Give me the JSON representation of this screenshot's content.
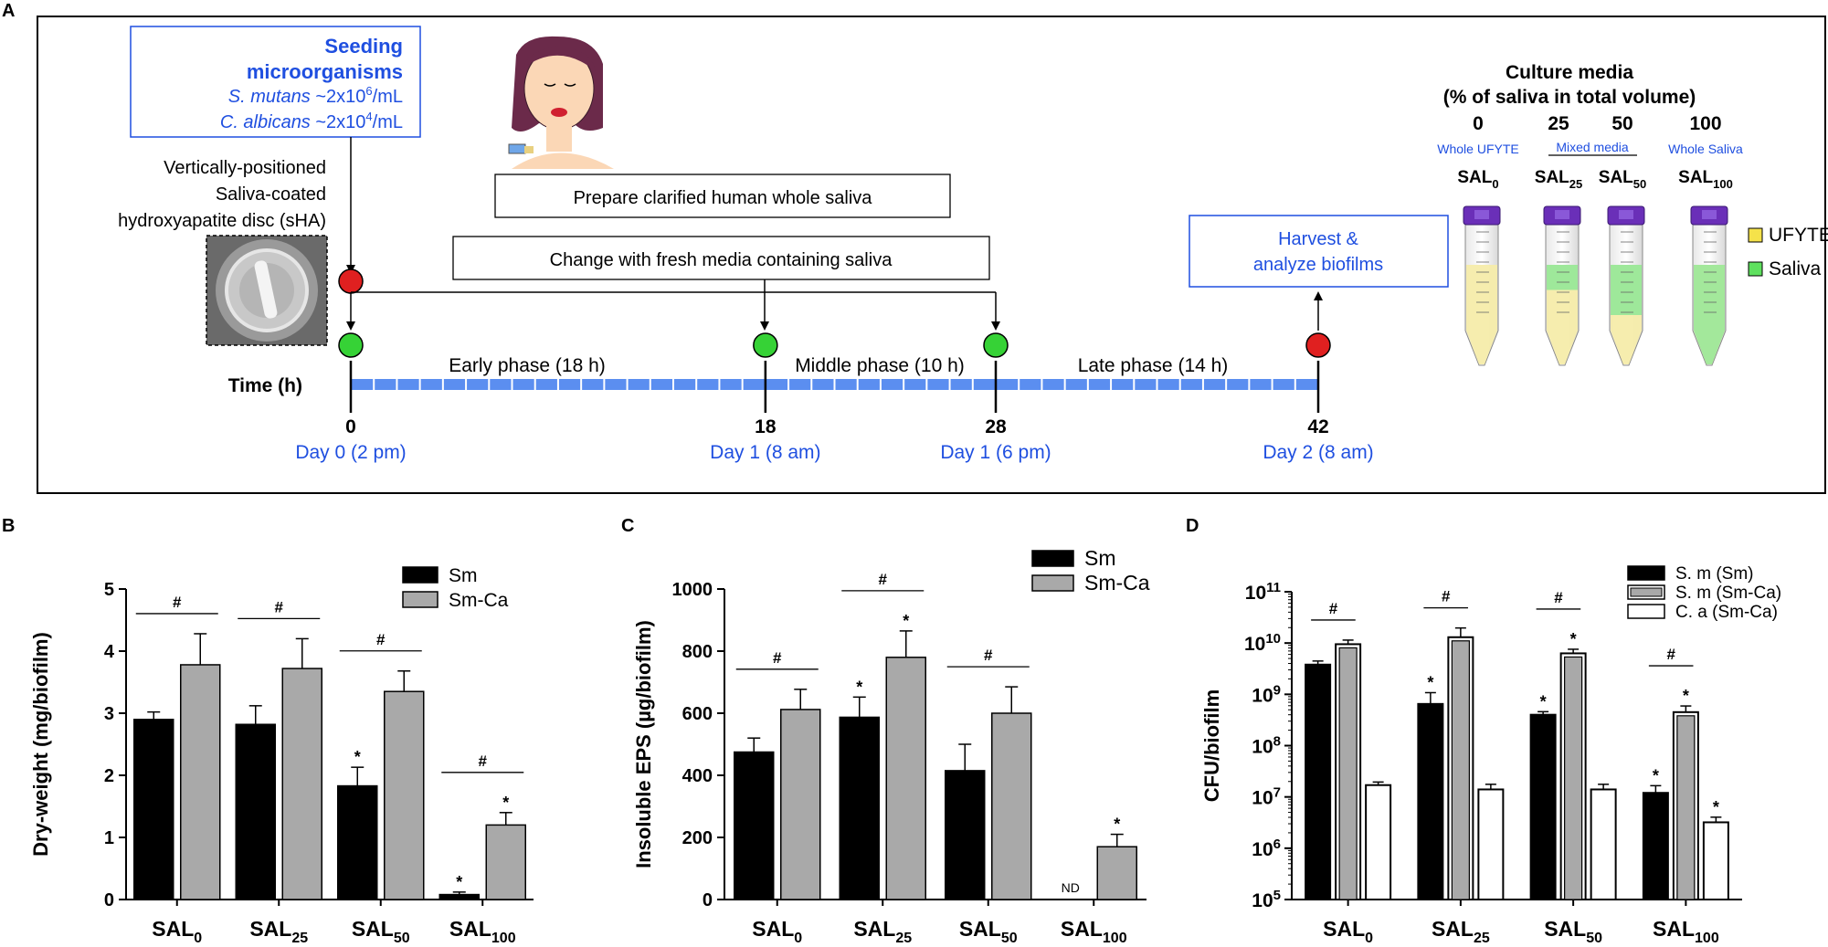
{
  "panel_labels": {
    "a": "A",
    "b": "B",
    "c": "C",
    "d": "D"
  },
  "colors": {
    "accent_blue": "#1f4fe0",
    "timeline_blue": "#5b8ef0",
    "red_marker": "#e02020",
    "green_marker": "#36d236",
    "bar_black": "#000000",
    "bar_gray": "#a9a9a9",
    "ufyte_yellow": "#f5e24a",
    "saliva_green": "#5ee05e"
  },
  "panel_a": {
    "seeding": {
      "title1": "Seeding",
      "title2": "microorganisms",
      "sm_name": "S. mutans",
      "sm_conc": " ~2x10",
      "sm_exp": "6",
      "sm_unit": "/mL",
      "ca_name": "C. albicans",
      "ca_conc": " ~2x10",
      "ca_exp": "4",
      "ca_unit": "/mL"
    },
    "disc_text": [
      "Vertically-positioned",
      "Saliva-coated",
      "hydroxyapatite disc (sHA)"
    ],
    "prepare_label": "Prepare clarified human whole saliva",
    "change_label": "Change with fresh media containing saliva",
    "harvest_label": [
      "Harvest &",
      "analyze biofilms"
    ],
    "time_label": "Time (h)",
    "phases": [
      "Early phase (18 h)",
      "Middle phase (10 h)",
      "Late phase (14 h)"
    ],
    "ticks": [
      {
        "hour": "0",
        "day": "Day 0 (2 pm)"
      },
      {
        "hour": "18",
        "day": "Day 1 (8 am)"
      },
      {
        "hour": "28",
        "day": "Day 1 (6 pm)"
      },
      {
        "hour": "42",
        "day": "Day 2 (8 am)"
      }
    ],
    "culture_media": {
      "title1": "Culture media",
      "title2": "(% of saliva in total volume)",
      "percents": [
        "0",
        "25",
        "50",
        "100"
      ],
      "groups": [
        "Whole UFYTE",
        "Mixed media",
        "Whole Saliva"
      ],
      "tube_labels": [
        {
          "base": "SAL",
          "sub": "0",
          "saliva_fraction": 0
        },
        {
          "base": "SAL",
          "sub": "25",
          "saliva_fraction": 0.25
        },
        {
          "base": "SAL",
          "sub": "50",
          "saliva_fraction": 0.5
        },
        {
          "base": "SAL",
          "sub": "100",
          "saliva_fraction": 1
        }
      ],
      "legend": [
        "UFYTE",
        "Saliva"
      ]
    }
  },
  "chart_data": [
    {
      "panel": "B",
      "type": "bar",
      "ylabel": "Dry-weight (mg/biofilm)",
      "ylim": [
        0,
        5
      ],
      "yticks": [
        "0",
        "1",
        "2",
        "3",
        "4",
        "5"
      ],
      "categories": [
        {
          "base": "SAL",
          "sub": "0"
        },
        {
          "base": "SAL",
          "sub": "25"
        },
        {
          "base": "SAL",
          "sub": "50"
        },
        {
          "base": "SAL",
          "sub": "100"
        }
      ],
      "legend": [
        "Sm",
        "Sm-Ca"
      ],
      "series": [
        {
          "name": "Sm",
          "values": [
            2.9,
            2.82,
            1.83,
            0.08
          ],
          "errors": [
            0.12,
            0.3,
            0.3,
            0.04
          ],
          "star": [
            false,
            false,
            true,
            true
          ]
        },
        {
          "name": "Sm-Ca",
          "values": [
            3.78,
            3.72,
            3.35,
            1.2
          ],
          "errors": [
            0.5,
            0.48,
            0.33,
            0.2
          ],
          "star": [
            false,
            false,
            false,
            true
          ]
        }
      ],
      "hash": [
        true,
        true,
        true,
        true
      ],
      "hash_symbol": "#",
      "star_symbol": "*"
    },
    {
      "panel": "C",
      "type": "bar",
      "ylabel": "Insoluble EPS  (µg/biofilm)",
      "ylim": [
        0,
        1000
      ],
      "yticks": [
        "0",
        "200",
        "400",
        "600",
        "800",
        "1000"
      ],
      "categories": [
        {
          "base": "SAL",
          "sub": "0"
        },
        {
          "base": "SAL",
          "sub": "25"
        },
        {
          "base": "SAL",
          "sub": "50"
        },
        {
          "base": "SAL",
          "sub": "100"
        }
      ],
      "legend": [
        "Sm",
        "Sm-Ca"
      ],
      "series": [
        {
          "name": "Sm",
          "values": [
            475,
            587,
            415,
            null
          ],
          "errors": [
            45,
            65,
            85,
            0
          ],
          "star": [
            false,
            true,
            false,
            false
          ]
        },
        {
          "name": "Sm-Ca",
          "values": [
            612,
            780,
            600,
            170
          ],
          "errors": [
            65,
            85,
            85,
            40
          ],
          "star": [
            false,
            true,
            false,
            true
          ]
        }
      ],
      "hash": [
        true,
        true,
        true,
        false
      ],
      "nd_label": "ND",
      "hash_symbol": "#",
      "star_symbol": "*"
    },
    {
      "panel": "D",
      "type": "bar",
      "scale": "log",
      "ylabel": "CFU/biofilm",
      "ylim": [
        100000,
        100000000000
      ],
      "yticks": [
        {
          "base": "10",
          "exp": "5"
        },
        {
          "base": "10",
          "exp": "6"
        },
        {
          "base": "10",
          "exp": "7"
        },
        {
          "base": "10",
          "exp": "8"
        },
        {
          "base": "10",
          "exp": "9"
        },
        {
          "base": "10",
          "exp": "10"
        },
        {
          "base": "10",
          "exp": "11"
        }
      ],
      "categories": [
        {
          "base": "SAL",
          "sub": "0"
        },
        {
          "base": "SAL",
          "sub": "25"
        },
        {
          "base": "SAL",
          "sub": "50"
        },
        {
          "base": "SAL",
          "sub": "100"
        }
      ],
      "legend": [
        "S. m (Sm)",
        "S. m (Sm-Ca)",
        "C. a (Sm-Ca)"
      ],
      "series": [
        {
          "name": "S. m (Sm)",
          "values": [
            3800000000,
            650000000,
            400000000,
            12000000
          ],
          "errors_log": [
            0.07,
            0.22,
            0.06,
            0.14
          ],
          "star": [
            false,
            true,
            true,
            true
          ]
        },
        {
          "name": "S. m (Sm-Ca)",
          "values": [
            9500000000,
            13000000000,
            6300000000,
            450000000
          ],
          "errors_log": [
            0.08,
            0.18,
            0.08,
            0.12
          ],
          "star": [
            false,
            false,
            true,
            true
          ]
        },
        {
          "name": "C. a (Sm-Ca)",
          "values": [
            17000000,
            14000000,
            14000000,
            3200000
          ],
          "errors_log": [
            0.06,
            0.1,
            0.1,
            0.1
          ],
          "star": [
            false,
            false,
            false,
            true
          ]
        }
      ],
      "hash": [
        true,
        true,
        true,
        true
      ],
      "hash_symbol": "#",
      "star_symbol": "*"
    }
  ]
}
